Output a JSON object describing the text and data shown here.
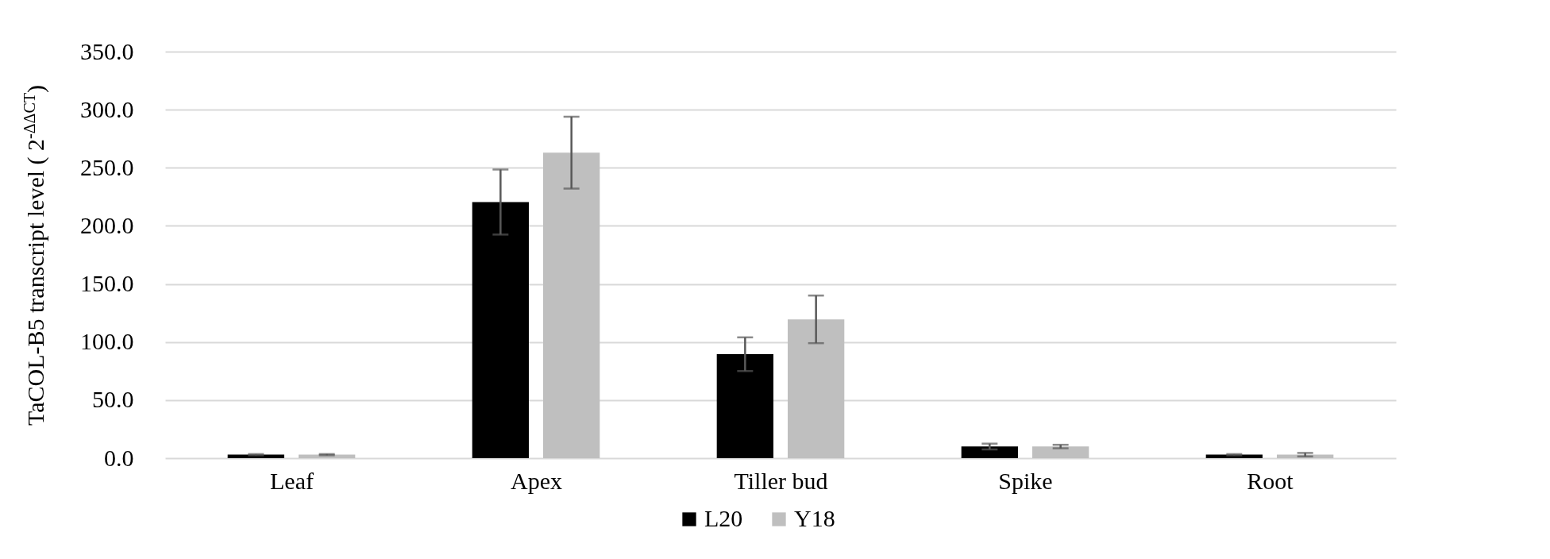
{
  "chart_data": {
    "type": "bar",
    "ylabel": "TaCOL-B5 transcript level ( 2$^{-ΔΔCT}$)",
    "categories": [
      "Leaf",
      "Apex",
      "Tiller bud",
      "Spike",
      "Root"
    ],
    "series": [
      {
        "name": "L20",
        "color": "#000000",
        "values": [
          3,
          220.5,
          89.5,
          10,
          3
        ],
        "errors": [
          0.5,
          28,
          14.5,
          2.5,
          0.5
        ]
      },
      {
        "name": "Y18",
        "color": "#bfbfbf",
        "values": [
          3,
          263,
          119.5,
          10,
          3
        ],
        "errors": [
          0.5,
          31,
          20.5,
          1.5,
          1.5
        ]
      }
    ],
    "ylim": [
      0,
      350
    ],
    "yticks": [
      {
        "value": 0,
        "label": "0.0"
      },
      {
        "value": 50,
        "label": "50.0"
      },
      {
        "value": 100,
        "label": "100.0"
      },
      {
        "value": 150,
        "label": "150.0"
      },
      {
        "value": 200,
        "label": "200.0"
      },
      {
        "value": 250,
        "label": "250.0"
      },
      {
        "value": 300,
        "label": "300.0"
      },
      {
        "value": 350,
        "label": "350.0"
      }
    ],
    "grid": "y",
    "legend": "bottom"
  }
}
